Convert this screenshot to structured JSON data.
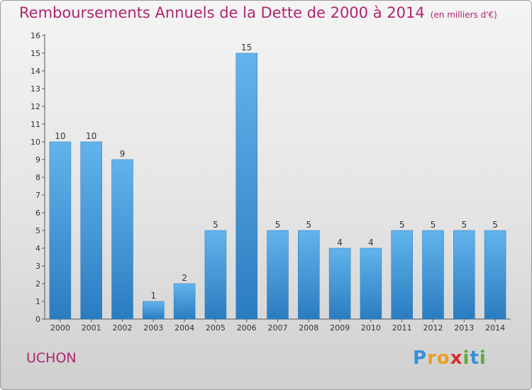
{
  "title": "Remboursements Annuels de la Dette de 2000 à 2014",
  "subtitle": "(en milliers d'€)",
  "town": "UCHON",
  "logo": {
    "letters": [
      {
        "ch": "P",
        "color": "#3a8fd8"
      },
      {
        "ch": "r",
        "color": "#e8a020"
      },
      {
        "ch": "o",
        "color": "#e8a020"
      },
      {
        "ch": "x",
        "color": "#d83030"
      },
      {
        "ch": "i",
        "color": "#5aaa3a"
      },
      {
        "ch": "t",
        "color": "#3a8fd8"
      },
      {
        "ch": "i",
        "color": "#5aaa3a"
      }
    ]
  },
  "colors": {
    "bar_light": "#62b4ec",
    "bar_dark": "#2a7cc0",
    "title": "#b0256e"
  },
  "chart_data": {
    "type": "bar",
    "categories": [
      "2000",
      "2001",
      "2002",
      "2003",
      "2004",
      "2005",
      "2006",
      "2007",
      "2008",
      "2009",
      "2010",
      "2011",
      "2012",
      "2013",
      "2014"
    ],
    "values": [
      10,
      10,
      9,
      1,
      2,
      5,
      15,
      5,
      5,
      4,
      4,
      5,
      5,
      5,
      5
    ],
    "title": "Remboursements Annuels de la Dette de 2000 à 2014",
    "xlabel": "",
    "ylabel": "",
    "ylim": [
      0,
      16
    ],
    "yticks": [
      0,
      1,
      2,
      3,
      4,
      5,
      6,
      7,
      8,
      9,
      10,
      11,
      12,
      13,
      14,
      15,
      16
    ],
    "grid": false,
    "data_labels": true
  }
}
